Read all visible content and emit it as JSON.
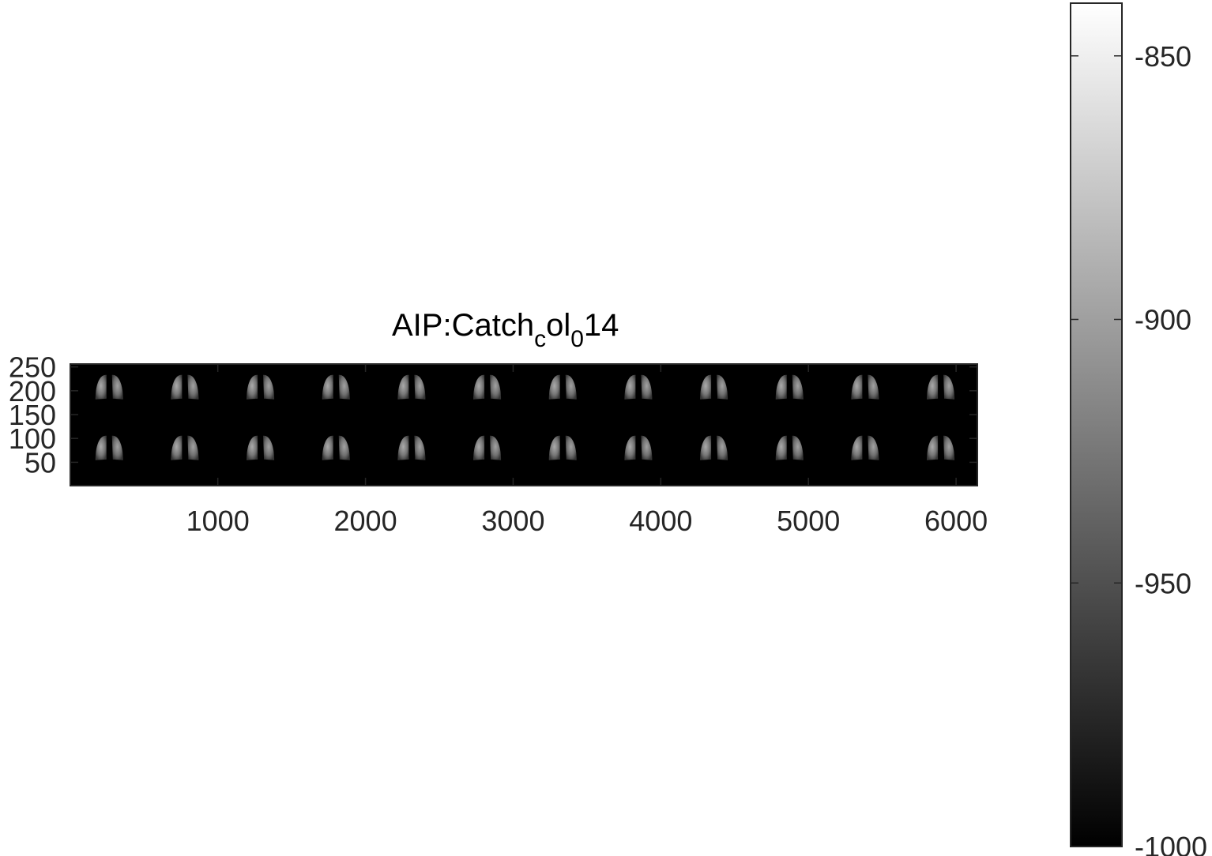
{
  "chart_data": {
    "type": "heatmap",
    "title": {
      "prefix": "AIP:Catch",
      "sub1": "c",
      "middle": "ol",
      "sub2": "0",
      "suffix": "14"
    },
    "xlim": [
      1,
      6144
    ],
    "ylim": [
      1,
      256
    ],
    "x_ticks": [
      1000,
      2000,
      3000,
      4000,
      5000,
      6000
    ],
    "x_tick_labels": [
      "1000",
      "2000",
      "3000",
      "4000",
      "5000",
      "6000"
    ],
    "y_ticks": [
      50,
      100,
      150,
      200,
      250
    ],
    "y_tick_labels": [
      "50",
      "100",
      "150",
      "200",
      "250"
    ],
    "montage": {
      "rows": 2,
      "cols": 12,
      "tile_width": 512,
      "tile_height": 128,
      "description": "coronal lung slices"
    },
    "colormap": "gray",
    "colorbar": {
      "clim": [
        -1000,
        -840
      ],
      "ticks": [
        -850,
        -900,
        -950,
        -1000
      ],
      "tick_labels": [
        "-850",
        "-900",
        "-950",
        "-1000"
      ]
    }
  }
}
